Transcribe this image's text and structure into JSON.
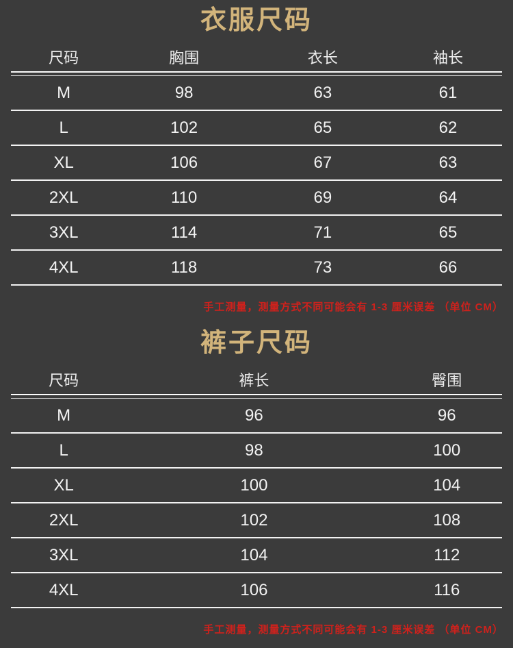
{
  "colors": {
    "background": "#3b3b3b",
    "title_gold": "#d2b47b",
    "table_text": "#f2f2f2",
    "divider_line": "#f2f2f2",
    "note_red": "#d0211c"
  },
  "chart_data": [
    {
      "type": "table",
      "title": "衣服尺码",
      "columns": [
        "尺码",
        "胸围",
        "衣长",
        "袖长"
      ],
      "rows": [
        [
          "M",
          "98",
          "63",
          "61"
        ],
        [
          "L",
          "102",
          "65",
          "62"
        ],
        [
          "XL",
          "106",
          "67",
          "63"
        ],
        [
          "2XL",
          "110",
          "69",
          "64"
        ],
        [
          "3XL",
          "114",
          "71",
          "65"
        ],
        [
          "4XL",
          "118",
          "73",
          "66"
        ]
      ],
      "note": "手工测量，测量方式不同可能会有 1-3 厘米误差 （单位 CM）"
    },
    {
      "type": "table",
      "title": "裤子尺码",
      "columns": [
        "尺码",
        "裤长",
        "臀围"
      ],
      "rows": [
        [
          "M",
          "96",
          "96"
        ],
        [
          "L",
          "98",
          "100"
        ],
        [
          "XL",
          "100",
          "104"
        ],
        [
          "2XL",
          "102",
          "108"
        ],
        [
          "3XL",
          "104",
          "112"
        ],
        [
          "4XL",
          "106",
          "116"
        ]
      ],
      "note": "手工测量，测量方式不同可能会有 1-3 厘米误差 （单位 CM）"
    }
  ]
}
